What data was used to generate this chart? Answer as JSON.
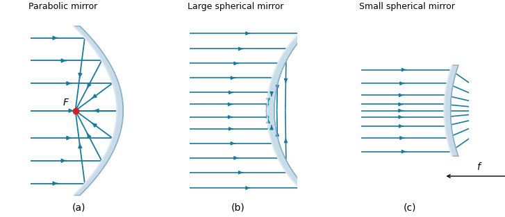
{
  "bg_color": "#ffffff",
  "arrow_color": "#1a7a9a",
  "mirror_face_color": "#c8dcea",
  "mirror_edge_color": "#8ab0c8",
  "focal_point_color": "#cc2222",
  "text_color": "#000000",
  "title_a": "Parabolic mirror",
  "title_b": "Large spherical mirror",
  "title_c": "Small spherical mirror",
  "label_a": "(a)",
  "label_b": "(b)",
  "label_c": "(c)",
  "label_F": "F",
  "label_f": "f"
}
